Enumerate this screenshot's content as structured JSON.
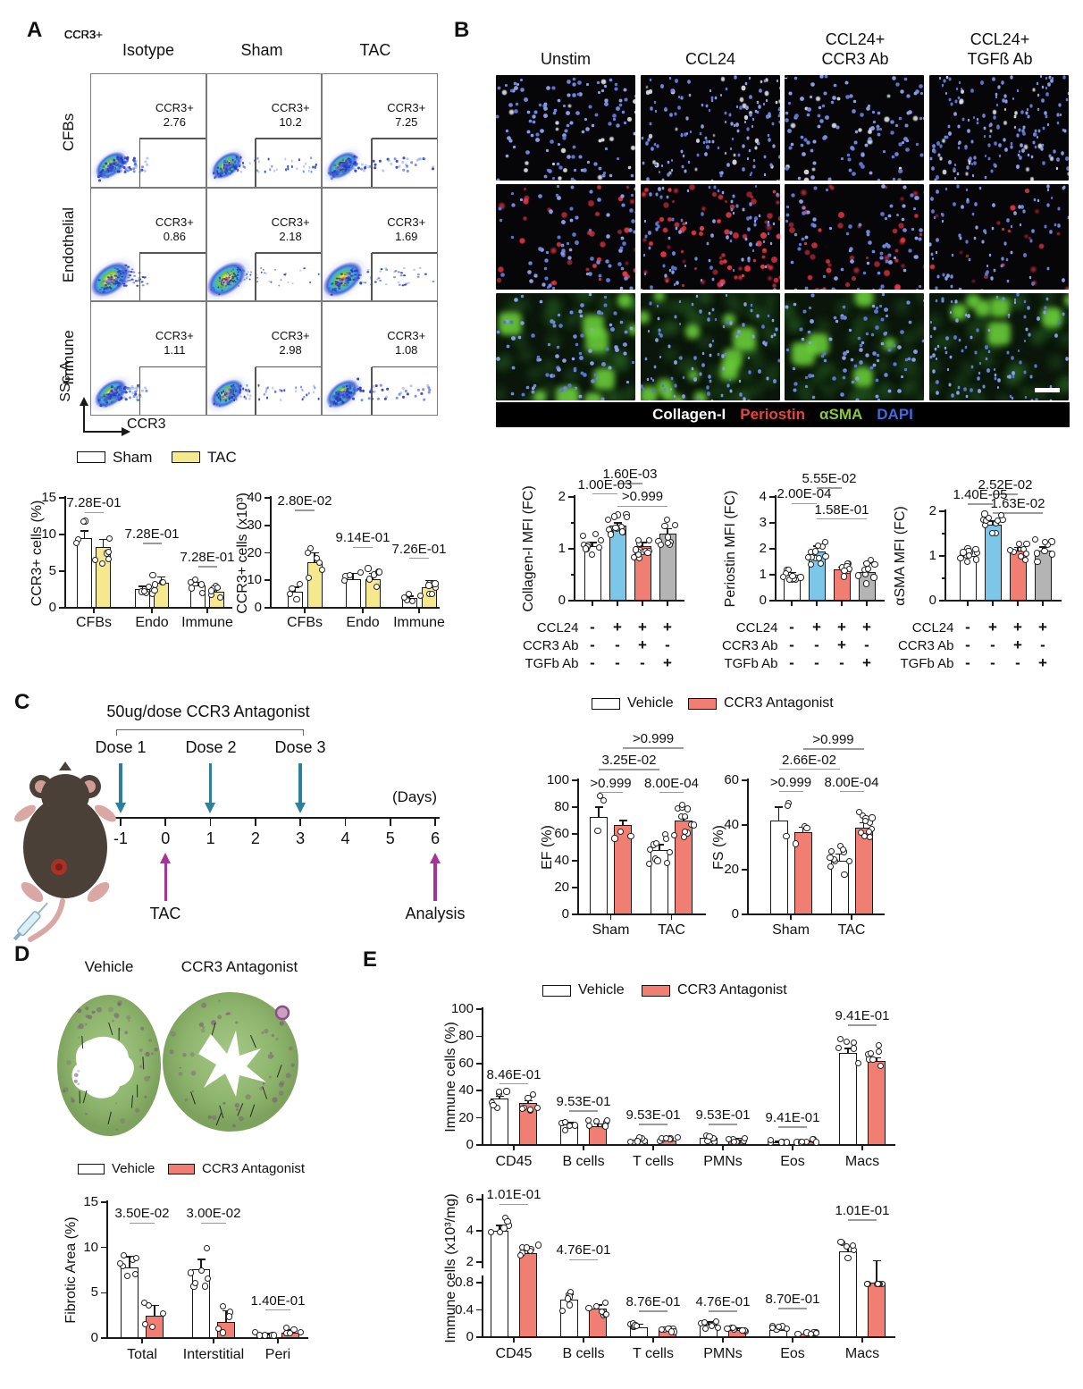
{
  "colors": {
    "sham_fill": "#FFFFFF",
    "tac_fill": "#F6E88F",
    "vehicle_fill": "#FFFFFF",
    "antagonist_fill": "#F17E72",
    "ccl24_blue": "#7CC7E8",
    "ccr3ab_red": "#F17E72",
    "tgfb_gray": "#B4B4B4",
    "dose_arrow_teal": "#2E7F9E",
    "event_arrow_purple": "#A53399",
    "stain_red": "#E8453C",
    "stain_green": "#8CC63F",
    "stain_blue": "#4169E1",
    "stain_white": "#FFFFFF"
  },
  "panelA": {
    "label": "A",
    "col_headers": [
      "Isotype",
      "Sham",
      "TAC"
    ],
    "row_headers": [
      "CFBs",
      "Endothelial",
      "Immune"
    ],
    "gate_label": "CCR3+",
    "gate_values": [
      [
        "2.76",
        "10.2",
        "7.25"
      ],
      [
        "0.86",
        "2.18",
        "1.69"
      ],
      [
        "1.11",
        "2.98",
        "1.08"
      ]
    ],
    "x_axis_label": "CCR3",
    "y_axis_label": "SSc-A",
    "legend": [
      "Sham",
      "TAC"
    ]
  },
  "panelB": {
    "label": "B",
    "col_headers": [
      [
        "Unstim"
      ],
      [
        "CCL24"
      ],
      [
        "CCL24+",
        "CCR3 Ab"
      ],
      [
        "CCL24+",
        "TGFß Ab"
      ]
    ],
    "stain_legend": [
      {
        "text": "Collagen-I",
        "color": "#FFFFFF"
      },
      {
        "text": "Periostin",
        "color": "#E8453C"
      },
      {
        "text": "αSMA",
        "color": "#8CC63F"
      },
      {
        "text": "DAPI",
        "color": "#4169E1"
      }
    ],
    "condition_rows": [
      "CCL24",
      "CCR3 Ab",
      "TGFb Ab"
    ],
    "condition_matrix": [
      [
        "-",
        "+",
        "+",
        "+"
      ],
      [
        "-",
        "-",
        "+",
        "-"
      ],
      [
        "-",
        "-",
        "-",
        "+"
      ]
    ]
  },
  "panelC": {
    "label": "C",
    "dose_title": "50ug/dose CCR3 Antagonist",
    "dose_labels": [
      "Dose 1",
      "Dose 2",
      "Dose 3"
    ],
    "day_ticks": [
      "-1",
      "0",
      "1",
      "2",
      "3",
      "4",
      "5",
      "6"
    ],
    "days_label": "(Days)",
    "tac_label": "TAC",
    "analysis_label": "Analysis",
    "legend": [
      "Vehicle",
      "CCR3 Antagonist"
    ]
  },
  "panelD": {
    "label": "D",
    "image_labels": [
      "Vehicle",
      "CCR3 Antagonist"
    ],
    "legend": [
      "Vehicle",
      "CCR3 Antagonist"
    ]
  },
  "panelE": {
    "label": "E",
    "legend": [
      "Vehicle",
      "CCR3 Antagonist"
    ]
  },
  "chart_data": [
    {
      "id": "a_pct",
      "type": "bar",
      "ylabel": "CCR3+ cells (%)",
      "ylim": [
        0,
        15
      ],
      "yticks": [
        0,
        5,
        10,
        15
      ],
      "categories": [
        "CFBs",
        "Endo",
        "Immune"
      ],
      "series": [
        {
          "name": "Sham",
          "color": "#FFFFFF",
          "values": [
            9.5,
            2.6,
            3.0
          ],
          "err": [
            1.0,
            0.3,
            0.5
          ],
          "n": [
            4,
            4,
            5
          ]
        },
        {
          "name": "TAC",
          "color": "#F6E88F",
          "values": [
            8.3,
            3.4,
            2.2
          ],
          "err": [
            1.0,
            0.8,
            0.4
          ],
          "n": [
            6,
            6,
            7
          ]
        }
      ],
      "pvalues": [
        {
          "text": "7.28E-01",
          "a": 0,
          "b": 1,
          "y": 13.0
        },
        {
          "text": "7.28E-01",
          "a": 2,
          "b": 3,
          "y": 8.8
        },
        {
          "text": "7.28E-01",
          "a": 4,
          "b": 5,
          "y": 5.6
        }
      ]
    },
    {
      "id": "a_cnt",
      "type": "bar",
      "ylabel": "CCR3+ cells (x10³)",
      "ylim": [
        0,
        40
      ],
      "yticks": [
        0,
        10,
        20,
        30,
        40
      ],
      "categories": [
        "CFBs",
        "Endo",
        "Immune"
      ],
      "series": [
        {
          "name": "Sham",
          "color": "#FFFFFF",
          "values": [
            6,
            10.5,
            3.5
          ],
          "err": [
            1.5,
            2,
            0.8
          ],
          "n": [
            4,
            4,
            4
          ]
        },
        {
          "name": "TAC",
          "color": "#F6E88F",
          "values": [
            16.5,
            10.5,
            7.5
          ],
          "err": [
            3.5,
            2,
            2.5
          ],
          "n": [
            6,
            6,
            7
          ]
        }
      ],
      "pvalues": [
        {
          "text": "2.80E-02",
          "a": 0,
          "b": 1,
          "y": 35.5
        },
        {
          "text": "9.14E-01",
          "a": 2,
          "b": 3,
          "y": 22
        },
        {
          "text": "7.26E-01",
          "a": 4,
          "b": 5,
          "y": 18
        }
      ]
    },
    {
      "id": "b_col",
      "type": "bar",
      "ylabel": "Collagen-I MFI (FC)",
      "ylim": [
        0,
        2
      ],
      "yticks": [
        0,
        1,
        2
      ],
      "bars": [
        {
          "color": "#FFFFFF",
          "value": 1.05,
          "err": 0.07,
          "n": 11
        },
        {
          "color": "#7CC7E8",
          "value": 1.45,
          "err": 0.05,
          "n": 14
        },
        {
          "color": "#F17E72",
          "value": 1.05,
          "err": 0.07,
          "n": 13
        },
        {
          "color": "#B4B4B4",
          "value": 1.3,
          "err": 0.09,
          "n": 9
        }
      ],
      "pvalues": [
        {
          "text": "1.60E-03",
          "a": 1,
          "b": 2,
          "y": 2.26
        },
        {
          "text": "1.00E-03",
          "a": 0,
          "b": 1,
          "y": 2.06
        },
        {
          "text": ">0.999",
          "a": 1,
          "b": 3,
          "y": 1.82
        }
      ]
    },
    {
      "id": "b_per",
      "type": "bar",
      "ylabel": "Periostin MFI (FC)",
      "ylim": [
        0,
        4
      ],
      "yticks": [
        0,
        1,
        2,
        3,
        4
      ],
      "bars": [
        {
          "color": "#FFFFFF",
          "value": 1.0,
          "err": 0.08,
          "n": 10
        },
        {
          "color": "#7CC7E8",
          "value": 1.9,
          "err": 0.2,
          "n": 12
        },
        {
          "color": "#F17E72",
          "value": 1.2,
          "err": 0.1,
          "n": 9
        },
        {
          "color": "#B4B4B4",
          "value": 1.1,
          "err": 0.35,
          "n": 9
        }
      ],
      "pvalues": [
        {
          "text": "5.55E-02",
          "a": 1,
          "b": 2,
          "y": 4.35
        },
        {
          "text": "2.00E-04",
          "a": 0,
          "b": 1,
          "y": 3.75
        },
        {
          "text": "1.58E-01",
          "a": 1,
          "b": 3,
          "y": 3.15
        }
      ]
    },
    {
      "id": "b_sma",
      "type": "bar",
      "ylabel": "αSMA MFI (FC)",
      "ylim": [
        0,
        2
      ],
      "yticks": [
        0,
        1,
        2
      ],
      "bars": [
        {
          "color": "#FFFFFF",
          "value": 1.0,
          "err": 0.07,
          "n": 13
        },
        {
          "color": "#7CC7E8",
          "value": 1.7,
          "err": 0.08,
          "n": 11
        },
        {
          "color": "#F17E72",
          "value": 1.12,
          "err": 0.07,
          "n": 8
        },
        {
          "color": "#B4B4B4",
          "value": 1.12,
          "err": 0.08,
          "n": 8
        }
      ],
      "pvalues": [
        {
          "text": "2.52E-02",
          "a": 1,
          "b": 2,
          "y": 2.38
        },
        {
          "text": "1.40E-05",
          "a": 0,
          "b": 1,
          "y": 2.16
        },
        {
          "text": "1.63E-02",
          "a": 1,
          "b": 3,
          "y": 1.96
        }
      ]
    },
    {
      "id": "ef",
      "type": "bar",
      "ylabel": "EF (%)",
      "ylim": [
        0,
        100
      ],
      "yticks": [
        0,
        20,
        40,
        60,
        80,
        100
      ],
      "categories": [
        "Sham",
        "TAC"
      ],
      "series": [
        {
          "name": "Vehicle",
          "color": "#FFFFFF",
          "values": [
            73,
            48
          ],
          "err": [
            7,
            4
          ],
          "n": [
            3,
            10
          ]
        },
        {
          "name": "CCR3 Antagonist",
          "color": "#F17E72",
          "values": [
            67,
            70
          ],
          "err": [
            3,
            2
          ],
          "n": [
            3,
            12
          ]
        }
      ],
      "pvalues": [
        {
          "text": ">0.999",
          "a": 0,
          "b": 1,
          "y": 91
        },
        {
          "text": "8.00E-04",
          "a": 2,
          "b": 3,
          "y": 91
        },
        {
          "text": "3.25E-02",
          "a": 0,
          "b": 2,
          "y": 108
        },
        {
          "text": ">0.999",
          "a": 1,
          "b": 3,
          "y": 124
        }
      ]
    },
    {
      "id": "fs",
      "type": "bar",
      "ylabel": "FS (%)",
      "ylim": [
        0,
        60
      ],
      "yticks": [
        0,
        20,
        40,
        60
      ],
      "categories": [
        "Sham",
        "TAC"
      ],
      "series": [
        {
          "name": "Vehicle",
          "color": "#FFFFFF",
          "values": [
            42,
            24
          ],
          "err": [
            6,
            3
          ],
          "n": [
            3,
            10
          ]
        },
        {
          "name": "CCR3 Antagonist",
          "color": "#F17E72",
          "values": [
            37,
            39
          ],
          "err": [
            2,
            2
          ],
          "n": [
            3,
            11
          ]
        }
      ],
      "pvalues": [
        {
          "text": ">0.999",
          "a": 0,
          "b": 1,
          "y": 55
        },
        {
          "text": "8.00E-04",
          "a": 2,
          "b": 3,
          "y": 55
        },
        {
          "text": "2.66E-02",
          "a": 0,
          "b": 2,
          "y": 65
        },
        {
          "text": ">0.999",
          "a": 1,
          "b": 3,
          "y": 74
        }
      ]
    },
    {
      "id": "fib",
      "type": "bar",
      "ylabel": "Fibrotic Area (%)",
      "ylim": [
        0,
        15
      ],
      "yticks": [
        0,
        5,
        10,
        15
      ],
      "categories": [
        "Total",
        "Interstitial",
        "Peri"
      ],
      "series": [
        {
          "name": "Vehicle",
          "color": "#FFFFFF",
          "values": [
            7.8,
            7.6,
            0.35
          ],
          "err": [
            1.2,
            1.1,
            0.15
          ],
          "n": [
            7,
            7,
            5
          ]
        },
        {
          "name": "CCR3 Antagonist",
          "color": "#F17E72",
          "values": [
            2.5,
            1.8,
            0.6
          ],
          "err": [
            1.1,
            1.2,
            0.3
          ],
          "n": [
            5,
            5,
            5
          ]
        }
      ],
      "pvalues": [
        {
          "text": "3.50E-02",
          "a": 0,
          "b": 1,
          "y": 12.7
        },
        {
          "text": "3.00E-02",
          "a": 2,
          "b": 3,
          "y": 12.7
        },
        {
          "text": "1.40E-01",
          "a": 4,
          "b": 5,
          "y": 3.1
        }
      ]
    },
    {
      "id": "imm_pct",
      "type": "bar",
      "ylabel": "Immune cells (%)",
      "ylim": [
        0,
        100
      ],
      "yticks": [
        0,
        20,
        40,
        60,
        80,
        100
      ],
      "categories": [
        "CD45",
        "B cells",
        "T cells",
        "PMNs",
        "Eos",
        "Macs"
      ],
      "series": [
        {
          "name": "Vehicle",
          "color": "#FFFFFF",
          "values": [
            34,
            15,
            4,
            5,
            2,
            68
          ],
          "err": [
            2,
            1.5,
            1,
            1,
            0.7,
            3
          ],
          "n": [
            6,
            6,
            6,
            6,
            6,
            6
          ]
        },
        {
          "name": "CCR3 Antagonist",
          "color": "#F17E72",
          "values": [
            31,
            14,
            3.5,
            4,
            2.5,
            62
          ],
          "err": [
            1.5,
            1.5,
            0.8,
            1,
            0.6,
            2
          ],
          "n": [
            7,
            7,
            7,
            7,
            7,
            7
          ]
        }
      ],
      "pvalues": [
        {
          "text": "8.46E-01",
          "a": 0,
          "b": 1,
          "y": 45
        },
        {
          "text": "9.53E-01",
          "a": 2,
          "b": 3,
          "y": 25
        },
        {
          "text": "9.53E-01",
          "a": 4,
          "b": 5,
          "y": 15
        },
        {
          "text": "9.53E-01",
          "a": 6,
          "b": 7,
          "y": 15
        },
        {
          "text": "9.41E-01",
          "a": 8,
          "b": 9,
          "y": 13
        },
        {
          "text": "9.41E-01",
          "a": 10,
          "b": 11,
          "y": 88
        }
      ]
    },
    {
      "id": "imm_cnt",
      "type": "bar-broken",
      "ylabel": "Immune cells (x10³/mg)",
      "axis_lower": {
        "lim": [
          0,
          0.8
        ],
        "ticks": [
          0,
          0.4,
          0.8
        ]
      },
      "axis_upper": {
        "lim": [
          2,
          6
        ],
        "ticks": [
          2,
          4,
          6
        ]
      },
      "categories": [
        "CD45",
        "B cells",
        "T cells",
        "PMNs",
        "Eos",
        "Macs"
      ],
      "series": [
        {
          "name": "Vehicle",
          "color": "#FFFFFF",
          "values": [
            4.0,
            0.55,
            0.15,
            0.18,
            0.1,
            2.7
          ],
          "err": [
            0.35,
            0.08,
            0.04,
            0.04,
            0.04,
            0.3
          ],
          "n": [
            6,
            6,
            6,
            6,
            6,
            6
          ]
        },
        {
          "name": "CCR3 Antagonist",
          "color": "#F17E72",
          "values": [
            2.6,
            0.42,
            0.1,
            0.11,
            0.05,
            1.9
          ],
          "err": [
            0.15,
            0.05,
            0.02,
            0.02,
            0.02,
            0.2
          ],
          "n": [
            7,
            7,
            7,
            7,
            7,
            7
          ]
        }
      ],
      "pvalues": [
        {
          "text": "1.01E-01",
          "a": 0,
          "b": 1,
          "seg": "up",
          "y": 5.7
        },
        {
          "text": "4.76E-01",
          "a": 2,
          "b": 3,
          "seg": "up",
          "y": 2.15
        },
        {
          "text": "8.76E-01",
          "a": 4,
          "b": 5,
          "seg": "lo",
          "y": 0.38
        },
        {
          "text": "4.76E-01",
          "a": 6,
          "b": 7,
          "seg": "lo",
          "y": 0.38
        },
        {
          "text": "8.70E-01",
          "a": 8,
          "b": 9,
          "seg": "lo",
          "y": 0.42
        },
        {
          "text": "1.01E-01",
          "a": 10,
          "b": 11,
          "seg": "up",
          "y": 4.7
        }
      ]
    }
  ]
}
